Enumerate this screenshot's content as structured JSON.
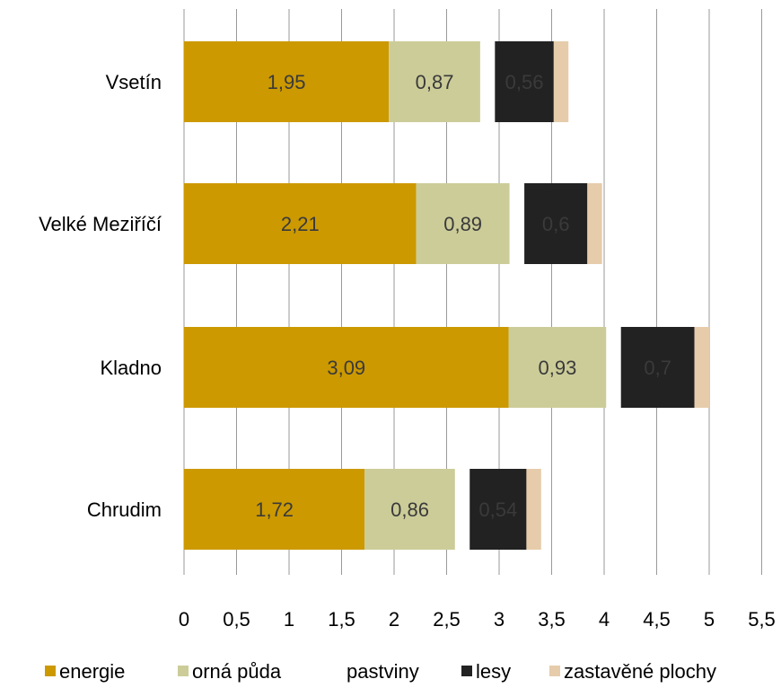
{
  "chart_data": {
    "type": "bar",
    "orientation": "horizontal",
    "stacked": true,
    "categories": [
      "Vsetín",
      "Velké Meziříčí",
      "Kladno",
      "Chrudim"
    ],
    "series": [
      {
        "name": "energie",
        "color": "#cc9900",
        "values": [
          1.95,
          2.21,
          3.09,
          1.72
        ],
        "labels": [
          "1,95",
          "2,21",
          "3,09",
          "1,72"
        ]
      },
      {
        "name": "orná půda",
        "color": "#cccc99",
        "values": [
          0.87,
          0.89,
          0.93,
          0.86
        ],
        "labels": [
          "0,87",
          "0,89",
          "0,93",
          "0,86"
        ]
      },
      {
        "name": "pastviny",
        "color": "#ffffff",
        "values": [
          0.14,
          0.14,
          0.14,
          0.14
        ],
        "labels": [
          "",
          "",
          "",
          ""
        ]
      },
      {
        "name": "lesy",
        "color": "#222222",
        "values": [
          0.56,
          0.6,
          0.7,
          0.54
        ],
        "labels": [
          "0,56",
          "0,6",
          "0,7",
          "0,54"
        ]
      },
      {
        "name": "zastavěné plochy",
        "color": "#e6ccaa",
        "values": [
          0.14,
          0.14,
          0.14,
          0.14
        ],
        "labels": [
          "",
          "",
          "",
          ""
        ]
      }
    ],
    "x_ticks": [
      "0",
      "0,5",
      "1",
      "1,5",
      "2",
      "2,5",
      "3",
      "3,5",
      "4",
      "4,5",
      "5",
      "5,5"
    ],
    "xlim": [
      0,
      5.5
    ],
    "title": "",
    "xlabel": "",
    "ylabel": "",
    "grid": "vertical",
    "legend_position": "bottom"
  }
}
